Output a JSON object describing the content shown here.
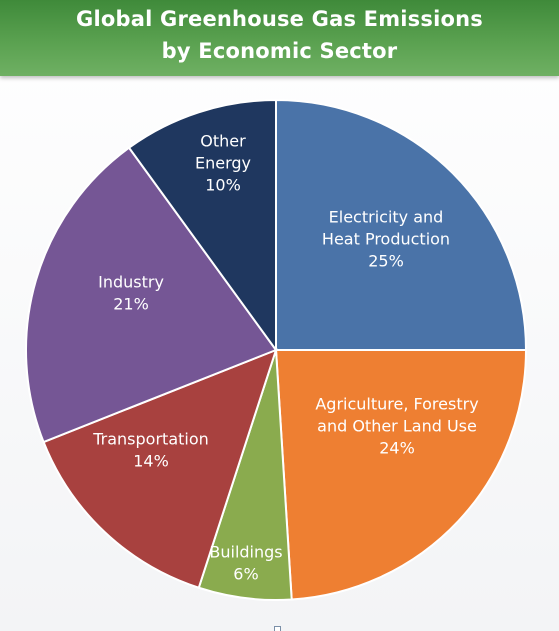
{
  "chart_data": {
    "type": "pie",
    "title": [
      "Global Greenhouse Gas Emissions",
      "by Economic Sector"
    ],
    "slices": [
      {
        "name": "Electricity and Heat Production",
        "label_lines": [
          "Electricity and",
          "Heat Production"
        ],
        "value": 25,
        "value_label": "25%",
        "color": "#4a73a8"
      },
      {
        "name": "Agriculture, Forestry and Other Land Use",
        "label_lines": [
          "Agriculture, Forestry",
          "and Other Land Use"
        ],
        "value": 24,
        "value_label": "24%",
        "color": "#ee7f32"
      },
      {
        "name": "Buildings",
        "label_lines": [
          "Buildings"
        ],
        "value": 6,
        "value_label": "6%",
        "color": "#8aab4e"
      },
      {
        "name": "Transportation",
        "label_lines": [
          "Transportation"
        ],
        "value": 14,
        "value_label": "14%",
        "color": "#a8413f"
      },
      {
        "name": "Industry",
        "label_lines": [
          "Industry"
        ],
        "value": 21,
        "value_label": "21%",
        "color": "#755695"
      },
      {
        "name": "Other Energy",
        "label_lines": [
          "Other",
          "Energy"
        ],
        "value": 10,
        "value_label": "10%",
        "color": "#1f375f"
      }
    ]
  }
}
